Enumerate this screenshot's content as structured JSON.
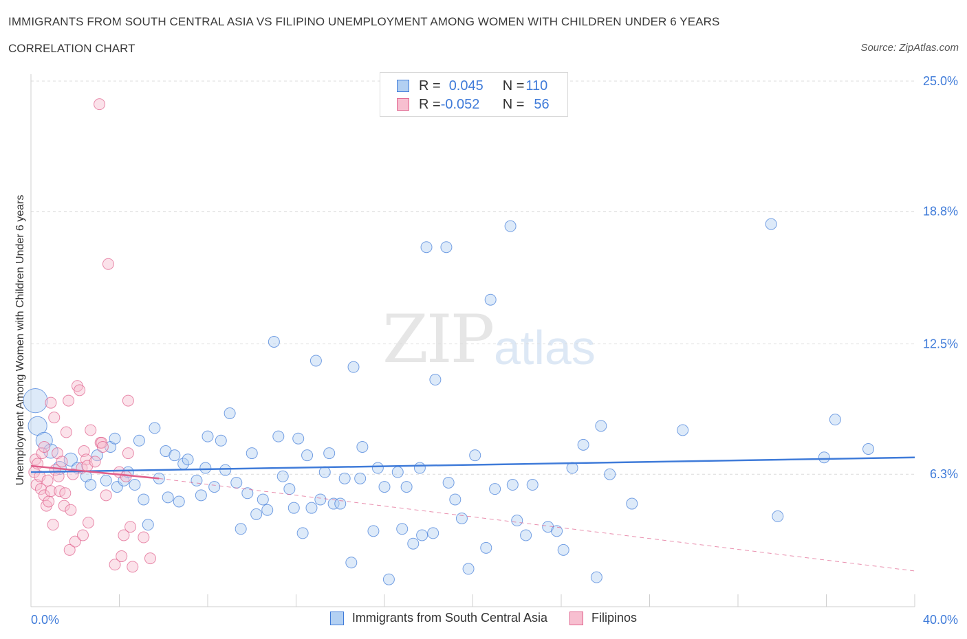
{
  "title": "IMMIGRANTS FROM SOUTH CENTRAL ASIA VS FILIPINO UNEMPLOYMENT AMONG WOMEN WITH CHILDREN UNDER 6 YEARS",
  "subtitle": "CORRELATION CHART",
  "source": "Source: ZipAtlas.com",
  "watermark": {
    "zip": "ZIP",
    "atlas": "atlas"
  },
  "colors": {
    "blue": "#3f7bd9",
    "blue_fill": "#b3d0f2",
    "pink": "#e0608c",
    "pink_fill": "#f7bfd0"
  },
  "legend": {
    "rows": [
      {
        "r_label": "R = ",
        "r_value": "0.045",
        "n_label": "N = ",
        "n_value": "110"
      },
      {
        "r_label": "R = ",
        "r_value": "-0.052",
        "n_label": "N = ",
        "n_value": " 56"
      }
    ]
  },
  "bottom_legend": [
    "Immigrants from South Central Asia",
    "Filipinos"
  ],
  "chart_data": {
    "type": "scatter",
    "ylabel": "Unemployment Among Women with Children Under 6 years",
    "xlim": [
      0,
      40
    ],
    "ylim": [
      0,
      25
    ],
    "x_tick_labels": [
      {
        "x": 0,
        "label": "0.0%"
      },
      {
        "x": 40,
        "label": "40.0%"
      }
    ],
    "y_tick_labels": [
      {
        "y": 6.3,
        "label": "6.3%"
      },
      {
        "y": 12.5,
        "label": "12.5%"
      },
      {
        "y": 18.8,
        "label": "18.8%"
      },
      {
        "y": 25.0,
        "label": "25.0%"
      }
    ],
    "grid": "horizontal dashed",
    "series": [
      {
        "name": "Immigrants from South Central Asia",
        "trend": {
          "x": [
            0,
            40
          ],
          "y": [
            6.4,
            7.1
          ]
        },
        "points": [
          [
            0.2,
            9.8,
            2.2
          ],
          [
            0.3,
            8.6,
            1.7
          ],
          [
            0.6,
            7.9,
            1.5
          ],
          [
            0.9,
            7.4,
            1.3
          ],
          [
            1.3,
            6.6,
            1.2
          ],
          [
            1.8,
            7.0,
            1.2
          ],
          [
            2.1,
            6.6,
            1.0
          ],
          [
            2.5,
            6.2,
            1.0
          ],
          [
            2.7,
            5.8,
            1.0
          ],
          [
            3.0,
            7.2,
            1.0
          ],
          [
            3.4,
            6.0,
            1.0
          ],
          [
            3.6,
            7.6,
            1.0
          ],
          [
            3.8,
            8.0,
            1.0
          ],
          [
            3.9,
            5.7,
            1.0
          ],
          [
            4.2,
            6.0,
            1.0
          ],
          [
            4.4,
            6.4,
            1.0
          ],
          [
            4.7,
            5.8,
            1.0
          ],
          [
            4.9,
            7.9,
            1.0
          ],
          [
            5.1,
            5.1,
            1.0
          ],
          [
            5.3,
            3.9,
            1.0
          ],
          [
            5.6,
            8.5,
            1.0
          ],
          [
            5.8,
            6.1,
            1.0
          ],
          [
            6.1,
            7.4,
            1.0
          ],
          [
            6.2,
            5.2,
            1.0
          ],
          [
            6.5,
            7.2,
            1.0
          ],
          [
            6.7,
            5.0,
            1.0
          ],
          [
            6.9,
            6.8,
            1.0
          ],
          [
            7.1,
            7.0,
            1.0
          ],
          [
            7.5,
            6.0,
            1.0
          ],
          [
            7.7,
            5.3,
            1.0
          ],
          [
            7.9,
            6.6,
            1.0
          ],
          [
            8.0,
            8.1,
            1.0
          ],
          [
            8.3,
            5.7,
            1.0
          ],
          [
            8.6,
            7.9,
            1.0
          ],
          [
            8.8,
            6.5,
            1.0
          ],
          [
            9.0,
            9.2,
            1.0
          ],
          [
            9.3,
            5.9,
            1.0
          ],
          [
            9.5,
            3.7,
            1.0
          ],
          [
            9.8,
            5.4,
            1.0
          ],
          [
            10.0,
            7.3,
            1.0
          ],
          [
            10.2,
            4.4,
            1.0
          ],
          [
            10.5,
            5.1,
            1.0
          ],
          [
            10.7,
            4.6,
            1.0
          ],
          [
            11.0,
            12.6,
            1.0
          ],
          [
            11.2,
            8.1,
            1.0
          ],
          [
            11.4,
            6.2,
            1.0
          ],
          [
            11.7,
            5.6,
            1.0
          ],
          [
            11.9,
            4.7,
            1.0
          ],
          [
            12.1,
            8.0,
            1.0
          ],
          [
            12.3,
            3.5,
            1.0
          ],
          [
            12.5,
            7.2,
            1.0
          ],
          [
            12.7,
            4.7,
            1.0
          ],
          [
            12.9,
            11.7,
            1.0
          ],
          [
            13.1,
            5.1,
            1.0
          ],
          [
            13.3,
            6.4,
            1.0
          ],
          [
            13.5,
            7.3,
            1.0
          ],
          [
            13.7,
            4.9,
            1.0
          ],
          [
            14.0,
            4.9,
            1.0
          ],
          [
            14.2,
            6.1,
            1.0
          ],
          [
            14.5,
            2.1,
            1.0
          ],
          [
            14.6,
            11.4,
            1.0
          ],
          [
            14.9,
            6.1,
            1.0
          ],
          [
            15.0,
            7.6,
            1.0
          ],
          [
            15.5,
            3.6,
            1.0
          ],
          [
            15.7,
            6.6,
            1.0
          ],
          [
            16.0,
            5.7,
            1.0
          ],
          [
            16.2,
            1.3,
            1.0
          ],
          [
            16.6,
            6.4,
            1.0
          ],
          [
            16.8,
            3.7,
            1.0
          ],
          [
            17.0,
            5.7,
            1.0
          ],
          [
            17.3,
            3.0,
            1.0
          ],
          [
            17.6,
            6.6,
            1.0
          ],
          [
            17.7,
            3.4,
            1.0
          ],
          [
            17.9,
            17.1,
            1.0
          ],
          [
            18.2,
            3.5,
            1.0
          ],
          [
            18.3,
            10.8,
            1.0
          ],
          [
            18.8,
            17.1,
            1.0
          ],
          [
            18.9,
            5.9,
            1.0
          ],
          [
            19.2,
            5.1,
            1.0
          ],
          [
            19.5,
            4.2,
            1.0
          ],
          [
            19.8,
            1.8,
            1.0
          ],
          [
            20.1,
            7.2,
            1.0
          ],
          [
            20.6,
            2.8,
            1.0
          ],
          [
            20.8,
            14.6,
            1.0
          ],
          [
            21.0,
            5.6,
            1.0
          ],
          [
            21.7,
            18.1,
            1.0
          ],
          [
            21.8,
            5.8,
            1.0
          ],
          [
            22.0,
            4.1,
            1.0
          ],
          [
            22.4,
            3.4,
            1.0
          ],
          [
            22.7,
            5.8,
            1.0
          ],
          [
            23.4,
            3.8,
            1.0
          ],
          [
            23.8,
            3.6,
            1.0
          ],
          [
            24.1,
            2.7,
            1.0
          ],
          [
            24.5,
            6.6,
            1.0
          ],
          [
            25.0,
            7.7,
            1.0
          ],
          [
            25.6,
            1.4,
            1.0
          ],
          [
            25.8,
            8.6,
            1.0
          ],
          [
            26.2,
            6.3,
            1.0
          ],
          [
            27.2,
            4.9,
            1.0
          ],
          [
            29.5,
            8.4,
            1.0
          ],
          [
            33.5,
            18.2,
            1.0
          ],
          [
            33.8,
            4.3,
            1.0
          ],
          [
            35.9,
            7.1,
            1.0
          ],
          [
            36.4,
            8.9,
            1.0
          ],
          [
            37.9,
            7.5,
            1.0
          ]
        ]
      },
      {
        "name": "Filipinos",
        "trend": {
          "x": [
            0,
            5.8
          ],
          "y": [
            6.7,
            6.1
          ]
        },
        "trend_extended": {
          "x": [
            5.8,
            40
          ],
          "y": [
            6.1,
            1.7
          ]
        },
        "points": [
          [
            0.15,
            6.4,
            1.0
          ],
          [
            0.2,
            7.0,
            1.0
          ],
          [
            0.25,
            5.8,
            1.0
          ],
          [
            0.3,
            6.8,
            1.0
          ],
          [
            0.4,
            6.2,
            1.0
          ],
          [
            0.45,
            5.6,
            1.0
          ],
          [
            0.5,
            7.3,
            1.0
          ],
          [
            0.6,
            5.3,
            1.0
          ],
          [
            0.6,
            7.6,
            1.0
          ],
          [
            0.7,
            4.8,
            1.0
          ],
          [
            0.75,
            6.0,
            1.0
          ],
          [
            0.8,
            5.0,
            1.0
          ],
          [
            0.9,
            5.5,
            1.0
          ],
          [
            0.9,
            9.7,
            1.0
          ],
          [
            1.0,
            3.9,
            1.0
          ],
          [
            1.05,
            9.0,
            1.0
          ],
          [
            1.1,
            6.5,
            1.0
          ],
          [
            1.2,
            7.3,
            1.0
          ],
          [
            1.25,
            6.2,
            1.0
          ],
          [
            1.3,
            5.5,
            1.0
          ],
          [
            1.4,
            6.9,
            1.0
          ],
          [
            1.5,
            4.8,
            1.0
          ],
          [
            1.55,
            5.4,
            1.0
          ],
          [
            1.6,
            8.3,
            1.0
          ],
          [
            1.7,
            9.8,
            1.0
          ],
          [
            1.75,
            2.7,
            1.0
          ],
          [
            1.8,
            4.6,
            1.0
          ],
          [
            1.9,
            6.3,
            1.0
          ],
          [
            2.0,
            3.1,
            1.0
          ],
          [
            2.1,
            10.5,
            1.0
          ],
          [
            2.2,
            10.3,
            1.0
          ],
          [
            2.3,
            6.6,
            1.0
          ],
          [
            2.35,
            3.4,
            1.0
          ],
          [
            2.4,
            7.4,
            1.0
          ],
          [
            2.5,
            7.0,
            1.0
          ],
          [
            2.55,
            6.7,
            1.0
          ],
          [
            2.6,
            4.0,
            1.0
          ],
          [
            2.7,
            8.4,
            1.0
          ],
          [
            2.9,
            6.9,
            1.0
          ],
          [
            3.1,
            23.9,
            1.0
          ],
          [
            3.15,
            7.8,
            1.0
          ],
          [
            3.2,
            7.8,
            1.0
          ],
          [
            3.25,
            7.6,
            1.0
          ],
          [
            3.4,
            5.3,
            1.0
          ],
          [
            3.5,
            16.3,
            1.0
          ],
          [
            3.8,
            2.0,
            1.0
          ],
          [
            4.0,
            6.4,
            1.0
          ],
          [
            4.1,
            2.4,
            1.0
          ],
          [
            4.2,
            3.4,
            1.0
          ],
          [
            4.3,
            6.2,
            1.0
          ],
          [
            4.4,
            9.8,
            1.0
          ],
          [
            4.4,
            7.3,
            1.0
          ],
          [
            4.5,
            3.8,
            1.0
          ],
          [
            4.6,
            1.9,
            1.0
          ],
          [
            5.1,
            3.3,
            1.0
          ],
          [
            5.4,
            2.3,
            1.0
          ]
        ]
      }
    ]
  }
}
